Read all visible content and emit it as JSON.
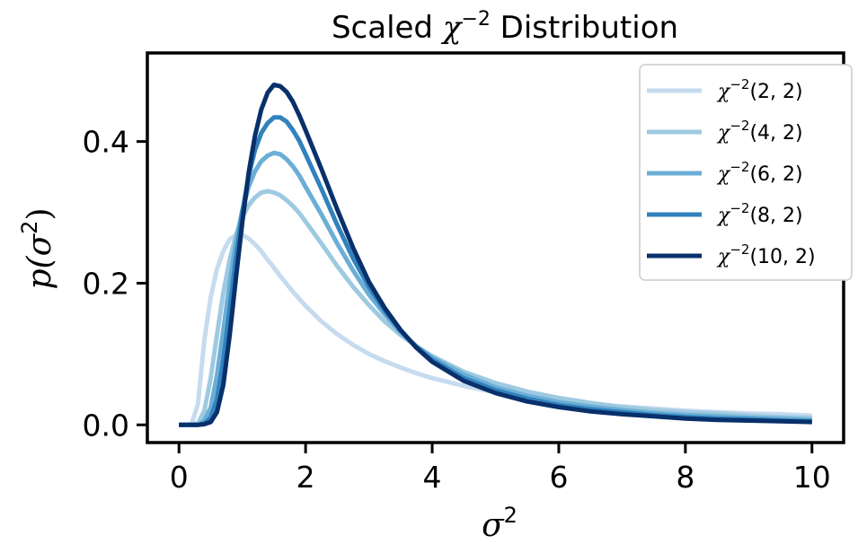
{
  "chart_data": {
    "type": "line",
    "title": "Scaled χ⁻² Distribution",
    "title_parts": {
      "main": "Scaled ",
      "chi": "χ",
      "exp": "−2",
      "rest": " Distribution"
    },
    "xlabel": {
      "base": "σ",
      "sup": "2"
    },
    "ylabel": {
      "base": "p(σ",
      "sup": "2",
      "close": ")"
    },
    "xlim": [
      -0.5,
      10.5
    ],
    "ylim": [
      -0.025,
      0.525
    ],
    "xticks": [
      0,
      2,
      4,
      6,
      8,
      10
    ],
    "xtick_labels": [
      "0",
      "2",
      "4",
      "6",
      "8",
      "10"
    ],
    "yticks": [
      0.0,
      0.2,
      0.4
    ],
    "ytick_labels": [
      "0.0",
      "0.2",
      "0.4"
    ],
    "grid": false,
    "legend_position": "top-right",
    "x": [
      0.0,
      0.1,
      0.2,
      0.3,
      0.4,
      0.5,
      0.6,
      0.7,
      0.8,
      0.9,
      1.0,
      1.1,
      1.2,
      1.3,
      1.4,
      1.5,
      1.6,
      1.7,
      1.8,
      1.9,
      2.0,
      2.25,
      2.5,
      2.75,
      3.0,
      3.25,
      3.5,
      3.75,
      4.0,
      4.5,
      5.0,
      5.5,
      6.0,
      6.5,
      7.0,
      7.5,
      8.0,
      8.5,
      9.0,
      9.5,
      10.0
    ],
    "series": [
      {
        "name": "χ⁻²(2, 2)",
        "label": {
          "chi": "χ",
          "exp": "−2",
          "args": "(2, 2)"
        },
        "color": "#c6dbef",
        "values": [
          0.0,
          0.0,
          0.001,
          0.03,
          0.119,
          0.18,
          0.22,
          0.245,
          0.262,
          0.268,
          0.268,
          0.263,
          0.255,
          0.245,
          0.233,
          0.222,
          0.21,
          0.199,
          0.188,
          0.178,
          0.168,
          0.146,
          0.128,
          0.113,
          0.1,
          0.09,
          0.081,
          0.073,
          0.066,
          0.055,
          0.046,
          0.039,
          0.034,
          0.029,
          0.026,
          0.023,
          0.02,
          0.018,
          0.016,
          0.015,
          0.013
        ]
      },
      {
        "name": "χ⁻²(4, 2)",
        "label": {
          "chi": "χ",
          "exp": "−2",
          "args": "(4, 2)"
        },
        "color": "#9ecae1",
        "values": [
          0.0,
          0.0,
          0.0,
          0.002,
          0.02,
          0.066,
          0.127,
          0.186,
          0.233,
          0.268,
          0.293,
          0.31,
          0.321,
          0.328,
          0.33,
          0.328,
          0.324,
          0.317,
          0.309,
          0.299,
          0.287,
          0.256,
          0.224,
          0.195,
          0.169,
          0.146,
          0.127,
          0.111,
          0.097,
          0.075,
          0.059,
          0.047,
          0.038,
          0.031,
          0.025,
          0.021,
          0.018,
          0.016,
          0.013,
          0.011,
          0.01
        ]
      },
      {
        "name": "χ⁻²(6, 2)",
        "label": {
          "chi": "χ",
          "exp": "−2",
          "args": "(6, 2)"
        },
        "color": "#6baed6",
        "values": [
          0.0,
          0.0,
          0.0,
          0.0,
          0.006,
          0.024,
          0.07,
          0.133,
          0.2,
          0.258,
          0.303,
          0.336,
          0.358,
          0.372,
          0.38,
          0.384,
          0.382,
          0.375,
          0.365,
          0.352,
          0.336,
          0.297,
          0.256,
          0.218,
          0.184,
          0.156,
          0.131,
          0.111,
          0.095,
          0.071,
          0.053,
          0.041,
          0.032,
          0.026,
          0.021,
          0.017,
          0.014,
          0.012,
          0.01,
          0.009,
          0.007
        ]
      },
      {
        "name": "χ⁻²(8, 2)",
        "label": {
          "chi": "χ",
          "exp": "−2",
          "args": "(8, 2)"
        },
        "color": "#3182bd",
        "values": [
          0.0,
          0.0,
          0.0,
          0.0,
          0.002,
          0.01,
          0.036,
          0.09,
          0.163,
          0.236,
          0.3,
          0.351,
          0.388,
          0.412,
          0.426,
          0.434,
          0.434,
          0.428,
          0.416,
          0.401,
          0.382,
          0.333,
          0.282,
          0.235,
          0.195,
          0.161,
          0.133,
          0.11,
          0.092,
          0.066,
          0.049,
          0.037,
          0.028,
          0.022,
          0.018,
          0.014,
          0.011,
          0.009,
          0.008,
          0.006,
          0.005
        ]
      },
      {
        "name": "χ⁻²(10, 2)",
        "label": {
          "chi": "χ",
          "exp": "−2",
          "args": "(10, 2)"
        },
        "color": "#08306b",
        "values": [
          0.0,
          0.0,
          0.0,
          0.0,
          0.001,
          0.004,
          0.018,
          0.056,
          0.126,
          0.207,
          0.286,
          0.355,
          0.408,
          0.445,
          0.469,
          0.48,
          0.478,
          0.47,
          0.456,
          0.437,
          0.416,
          0.361,
          0.304,
          0.25,
          0.202,
          0.165,
          0.134,
          0.109,
          0.089,
          0.062,
          0.045,
          0.033,
          0.025,
          0.019,
          0.015,
          0.012,
          0.009,
          0.007,
          0.006,
          0.005,
          0.004
        ]
      }
    ]
  }
}
